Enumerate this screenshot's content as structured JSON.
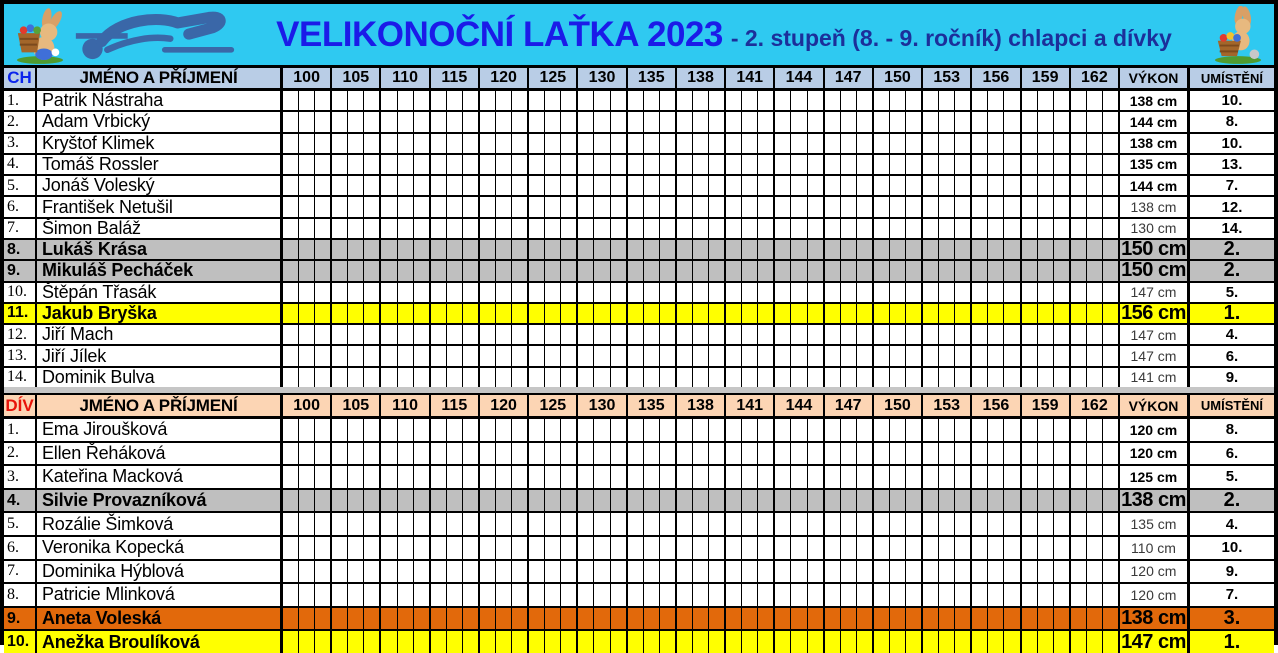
{
  "header": {
    "title": "VELIKONOČNÍ LAŤKA 2023",
    "subtitle": "- 2. stupeň (8. - 9. ročník) chlapci a dívky"
  },
  "columns": {
    "name_header": "JMÉNO A PŘÍJMENÍ",
    "vykon": "VÝKON",
    "umisteni": "UMÍSTĚNÍ"
  },
  "heights": [
    "100",
    "105",
    "110",
    "115",
    "120",
    "125",
    "130",
    "135",
    "138",
    "141",
    "144",
    "147",
    "150",
    "153",
    "156",
    "159",
    "162"
  ],
  "colors": {
    "titlebar_bg": "#2fc9f1",
    "title_text": "#1b1be8",
    "subtitle_text": "#1c2f9a",
    "boys_header_bg": "#b9cde6",
    "girls_header_bg": "#fcd5b4",
    "boys_tag_color": "#0b24eb",
    "girls_tag_color": "#e81309",
    "highlight_gray": "#bfbfbf",
    "highlight_yellow": "#ffff00",
    "highlight_orange": "#e2690b",
    "jumper_icon": "#3a67a8"
  },
  "sections": [
    {
      "id": "boys",
      "tag": "CH",
      "tag_color": "#0b24eb",
      "header_bg": "#b9cde6",
      "rows": [
        {
          "num": "1.",
          "name": "Patrik Nástraha",
          "vykon": "138 cm",
          "umisteni": "10.",
          "hl": "",
          "vb": true
        },
        {
          "num": "2.",
          "name": "Adam Vrbický",
          "vykon": "144 cm",
          "umisteni": "8.",
          "hl": "",
          "vb": true
        },
        {
          "num": "3.",
          "name": "Kryštof Klimek",
          "vykon": "138 cm",
          "umisteni": "10.",
          "hl": "",
          "vb": true
        },
        {
          "num": "4.",
          "name": "Tomáš Rossler",
          "vykon": "135 cm",
          "umisteni": "13.",
          "hl": "",
          "vb": true
        },
        {
          "num": "5.",
          "name": "Jonáš Voleský",
          "vykon": "144 cm",
          "umisteni": "7.",
          "hl": "",
          "vb": true
        },
        {
          "num": "6.",
          "name": "František Netušil",
          "vykon": "138 cm",
          "umisteni": "12.",
          "hl": "",
          "vb": false
        },
        {
          "num": "7.",
          "name": "Šimon Baláž",
          "vykon": "130 cm",
          "umisteni": "14.",
          "hl": "",
          "vb": false
        },
        {
          "num": "8.",
          "name": "Lukáš Krása",
          "vykon": "150 cm",
          "umisteni": "2.",
          "hl": "gray",
          "vb": true
        },
        {
          "num": "9.",
          "name": "Mikuláš Pecháček",
          "vykon": "150 cm",
          "umisteni": "2.",
          "hl": "gray",
          "vb": true
        },
        {
          "num": "10.",
          "name": "Štěpán Třasák",
          "vykon": "147 cm",
          "umisteni": "5.",
          "hl": "",
          "vb": false
        },
        {
          "num": "11.",
          "name": "Jakub Bryška",
          "vykon": "156 cm",
          "umisteni": "1.",
          "hl": "yellow",
          "vb": true
        },
        {
          "num": "12.",
          "name": "Jiří Mach",
          "vykon": "147 cm",
          "umisteni": "4.",
          "hl": "",
          "vb": false
        },
        {
          "num": "13.",
          "name": "Jiří Jílek",
          "vykon": "147 cm",
          "umisteni": "6.",
          "hl": "",
          "vb": false
        },
        {
          "num": "14.",
          "name": "Dominik Bulva",
          "vykon": "141 cm",
          "umisteni": "9.",
          "hl": "",
          "vb": false
        }
      ]
    },
    {
      "id": "girls",
      "tag": "DÍV",
      "tag_color": "#e81309",
      "header_bg": "#fcd5b4",
      "rows": [
        {
          "num": "1.",
          "name": "Ema Jiroušková",
          "vykon": "120 cm",
          "umisteni": "8.",
          "hl": "",
          "vb": true
        },
        {
          "num": "2.",
          "name": "Ellen Řeháková",
          "vykon": "120 cm",
          "umisteni": "6.",
          "hl": "",
          "vb": true
        },
        {
          "num": "3.",
          "name": "Kateřina Macková",
          "vykon": "125 cm",
          "umisteni": "5.",
          "hl": "",
          "vb": true
        },
        {
          "num": "4.",
          "name": "Silvie Provazníková",
          "vykon": "138 cm",
          "umisteni": "2.",
          "hl": "gray",
          "vb": true
        },
        {
          "num": "5.",
          "name": "Rozálie Šimková",
          "vykon": "135 cm",
          "umisteni": "4.",
          "hl": "",
          "vb": false
        },
        {
          "num": "6.",
          "name": "Veronika Kopecká",
          "vykon": "110 cm",
          "umisteni": "10.",
          "hl": "",
          "vb": false
        },
        {
          "num": "7.",
          "name": "Dominika Hýblová",
          "vykon": "120 cm",
          "umisteni": "9.",
          "hl": "",
          "vb": false
        },
        {
          "num": "8.",
          "name": "Patricie Mlinková",
          "vykon": "120 cm",
          "umisteni": "7.",
          "hl": "",
          "vb": false
        },
        {
          "num": "9.",
          "name": "Aneta Voleská",
          "vykon": "138 cm",
          "umisteni": "3.",
          "hl": "orange",
          "vb": true
        },
        {
          "num": "10.",
          "name": "Anežka Broulíková",
          "vykon": "147 cm",
          "umisteni": "1.",
          "hl": "yellow",
          "vb": true
        }
      ]
    }
  ]
}
